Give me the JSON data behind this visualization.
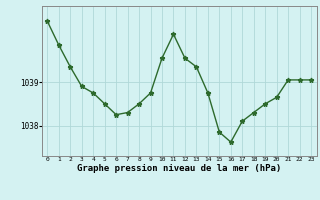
{
  "x": [
    0,
    1,
    2,
    3,
    4,
    5,
    6,
    7,
    8,
    9,
    10,
    11,
    12,
    13,
    14,
    15,
    16,
    17,
    18,
    19,
    20,
    21,
    22,
    23
  ],
  "y": [
    1040.4,
    1039.85,
    1039.35,
    1038.9,
    1038.75,
    1038.5,
    1038.25,
    1038.3,
    1038.5,
    1038.75,
    1039.55,
    1040.1,
    1039.55,
    1039.35,
    1038.75,
    1037.85,
    1037.62,
    1038.1,
    1038.3,
    1038.5,
    1038.65,
    1039.05,
    1039.05,
    1039.05
  ],
  "line_color": "#2d6a2d",
  "marker": "*",
  "marker_size": 3.5,
  "bg_color": "#d4f2f2",
  "grid_color": "#b0d8d8",
  "xlabel": "Graphe pression niveau de la mer (hPa)",
  "xlabel_fontsize": 6.5,
  "ytick_labels": [
    "1038",
    "1039"
  ],
  "ytick_vals": [
    1038,
    1039
  ],
  "xtick_labels": [
    "0",
    "1",
    "2",
    "3",
    "4",
    "5",
    "6",
    "7",
    "8",
    "9",
    "10",
    "11",
    "12",
    "13",
    "14",
    "15",
    "16",
    "17",
    "18",
    "19",
    "20",
    "21",
    "22",
    "23"
  ],
  "ylim_min": 1037.3,
  "ylim_max": 1040.75,
  "xlim_min": -0.5,
  "xlim_max": 23.5,
  "line_width": 1.0
}
